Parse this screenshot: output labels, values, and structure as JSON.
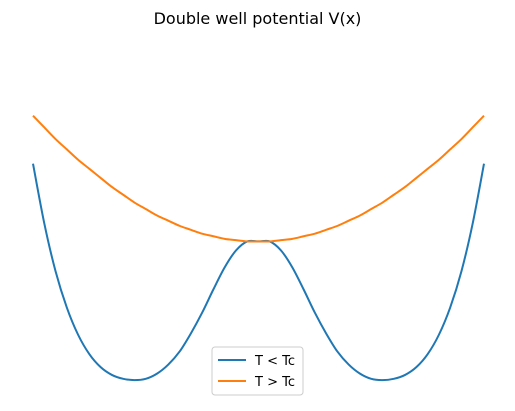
{
  "chart_data": {
    "type": "line",
    "title": "Double well potential V(x)",
    "xlabel": "",
    "ylabel": "",
    "axes_visible": false,
    "grid": false,
    "legend_placement": "lower-center",
    "xlim": [
      -2,
      2
    ],
    "ylim": [
      -1.1,
      1.5
    ],
    "series": [
      {
        "name": "T < Tc",
        "color": "#1f77b4",
        "x": [
          -2.0,
          -1.9,
          -1.8,
          -1.7,
          -1.6,
          -1.5,
          -1.4,
          -1.3,
          -1.2,
          -1.1,
          -1.0,
          -0.9,
          -0.8,
          -0.7,
          -0.6,
          -0.5,
          -0.4,
          -0.3,
          -0.2,
          -0.1,
          0.0,
          0.1,
          0.2,
          0.3,
          0.4,
          0.5,
          0.6,
          0.7,
          0.8,
          0.9,
          1.0,
          1.1,
          1.2,
          1.3,
          1.4,
          1.5,
          1.6,
          1.7,
          1.8,
          1.9,
          2.0
        ],
        "y": [
          0.6,
          0.14,
          -0.23,
          -0.51,
          -0.72,
          -0.87,
          -0.97,
          -1.03,
          -1.06,
          -1.07,
          -1.06,
          -1.02,
          -0.95,
          -0.85,
          -0.71,
          -0.55,
          -0.37,
          -0.2,
          -0.07,
          0.0,
          0.0,
          0.0,
          -0.07,
          -0.2,
          -0.37,
          -0.55,
          -0.71,
          -0.85,
          -0.95,
          -1.02,
          -1.06,
          -1.07,
          -1.06,
          -1.03,
          -0.97,
          -0.87,
          -0.72,
          -0.51,
          -0.23,
          0.14,
          0.6
        ]
      },
      {
        "name": "T > Tc",
        "color": "#ff7f0e",
        "x": [
          -2.0,
          -1.9,
          -1.8,
          -1.7,
          -1.6,
          -1.5,
          -1.4,
          -1.3,
          -1.2,
          -1.1,
          -1.0,
          -0.9,
          -0.8,
          -0.7,
          -0.6,
          -0.5,
          -0.4,
          -0.3,
          -0.2,
          -0.1,
          0.0,
          0.1,
          0.2,
          0.3,
          0.4,
          0.5,
          0.6,
          0.7,
          0.8,
          0.9,
          1.0,
          1.1,
          1.2,
          1.3,
          1.4,
          1.5,
          1.6,
          1.7,
          1.8,
          1.9,
          2.0
        ],
        "y": [
          0.97,
          0.88,
          0.79,
          0.71,
          0.63,
          0.56,
          0.49,
          0.42,
          0.36,
          0.3,
          0.25,
          0.2,
          0.16,
          0.12,
          0.09,
          0.06,
          0.04,
          0.02,
          0.01,
          0.0,
          0.0,
          0.0,
          0.01,
          0.02,
          0.04,
          0.06,
          0.09,
          0.12,
          0.16,
          0.2,
          0.25,
          0.3,
          0.36,
          0.42,
          0.49,
          0.56,
          0.63,
          0.71,
          0.79,
          0.88,
          0.97
        ]
      }
    ]
  }
}
